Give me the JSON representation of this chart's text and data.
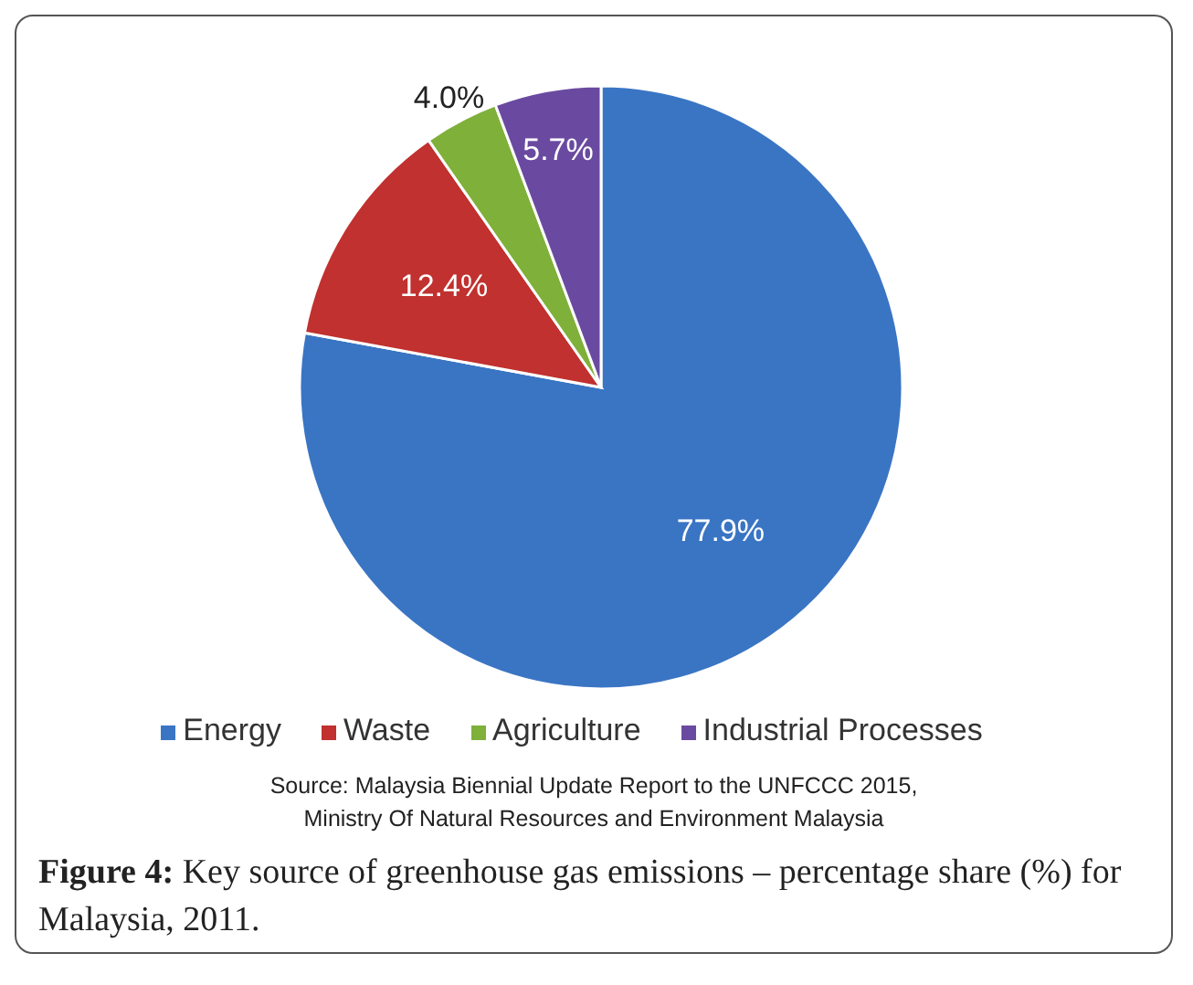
{
  "chart_data": {
    "type": "pie",
    "categories": [
      "Energy",
      "Waste",
      "Agriculture",
      "Industrial Processes"
    ],
    "values": [
      77.9,
      12.4,
      4.0,
      5.7
    ],
    "colors": [
      "#3a75c4",
      "#c0312f",
      "#7fb03a",
      "#6a4aa0"
    ],
    "value_labels": [
      "77.9%",
      "12.4%",
      "4.0%",
      "5.7%"
    ],
    "legend": "bottom",
    "annotations": [
      "Source: Malaysia Biennial Update Report to the UNFCCC 2015,",
      "Ministry Of Natural Resources and Environment Malaysia",
      "Figure 4: Key source of greenhouse gas emissions – percentage share (%) for Malaysia, 2011."
    ]
  }
}
